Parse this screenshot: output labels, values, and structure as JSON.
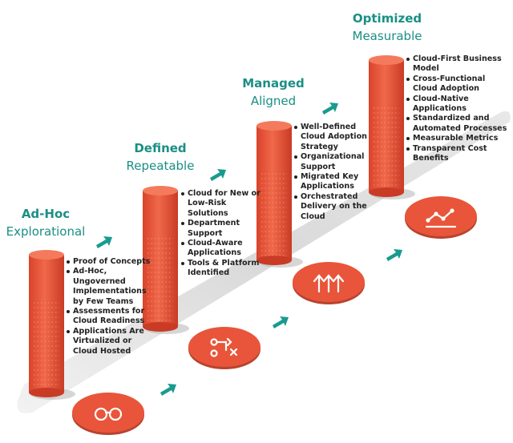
{
  "stages": [
    {
      "title": "Ad-Hoc",
      "subtitle": "Explorational",
      "bullets": [
        "Proof of Concepts",
        "Ad-Hoc, Ungoverned Implementations by Few Teams",
        "Assessments for Cloud Readiness",
        "Applications Are Virtualized or Cloud Hosted"
      ]
    },
    {
      "title": "Defined",
      "subtitle": "Repeatable",
      "bullets": [
        "Cloud for New or Low-Risk Solutions",
        "Department Support",
        "Cloud-Aware Applications",
        "Tools & Platform Identified"
      ]
    },
    {
      "title": "Managed",
      "subtitle": "Aligned",
      "bullets": [
        "Well-Defined Cloud Adoption Strategy",
        "Organizational Support",
        "Migrated Key Applications",
        "Orchestrated Delivery on the Cloud"
      ]
    },
    {
      "title": "Optimized",
      "subtitle": "Measurable",
      "bullets": [
        "Cloud-First Business Model",
        "Cross-Functional Cloud Adoption",
        "Cloud-Native Applications",
        "Standardized and Automated Processes",
        "Measurable Metrics",
        "Transparent Cost Benefits"
      ]
    }
  ]
}
